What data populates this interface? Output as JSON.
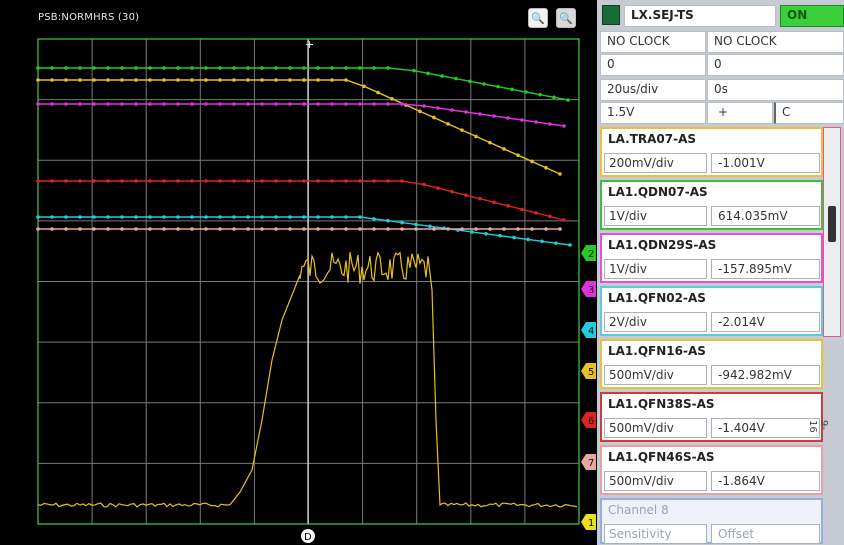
{
  "scope": {
    "title": "PSB:NORMHRS (30)",
    "zoom_in_icon": "zoom-in-icon",
    "zoom_out_icon": "zoom-out-icon",
    "trigger_label": "D",
    "channel_markers": [
      "2",
      "3",
      "4",
      "5",
      "6",
      "7",
      "1"
    ]
  },
  "header": {
    "timing_name": "LX.SEJ-TS",
    "on_label": "ON",
    "clock_left": "NO CLOCK",
    "clock_right": "NO CLOCK",
    "val_left": "0",
    "val_right": "0",
    "timebase": "20us/div",
    "delay": "0s",
    "trig_level": "1.5V",
    "trig_slope": "+",
    "trig_coupling": "C"
  },
  "channels": [
    {
      "name": "LA.TRA07-AS",
      "sens": "200mV/div",
      "offset": "-1.001V",
      "color": "#e8c23e"
    },
    {
      "name": "LA1.QDN07-AS",
      "sens": "1V/div",
      "offset": "614.035mV",
      "color": "#3cbf3c"
    },
    {
      "name": "LA1.QDN29S-AS",
      "sens": "1V/div",
      "offset": "-157.895mV",
      "color": "#e050d8"
    },
    {
      "name": "LA1.QFN02-AS",
      "sens": "2V/div",
      "offset": "-2.014V",
      "color": "#58cfd8"
    },
    {
      "name": "LA1.QFN16-AS",
      "sens": "500mV/div",
      "offset": "-942.982mV",
      "color": "#e8c23e"
    },
    {
      "name": "LA1.QFN38S-AS",
      "sens": "500mV/div",
      "offset": "-1.404V",
      "color": "#d03a3a"
    },
    {
      "name": "LA1.QFN46S-AS",
      "sens": "500mV/div",
      "offset": "-1.864V",
      "color": "#e8a0a0"
    },
    {
      "name": "Channel 8",
      "sens": "Sensitivity",
      "offset": "Offset",
      "color": "#8fb0e0"
    }
  ],
  "side_label": "9-16",
  "colors": {
    "green": "#22cc22",
    "yellow": "#e8c020",
    "magenta": "#dd33dd",
    "red": "#dd2222",
    "cyan": "#22ccdd",
    "pink": "#e8a8a0",
    "grid": "#7a7a7a",
    "frame": "#44cc44"
  }
}
